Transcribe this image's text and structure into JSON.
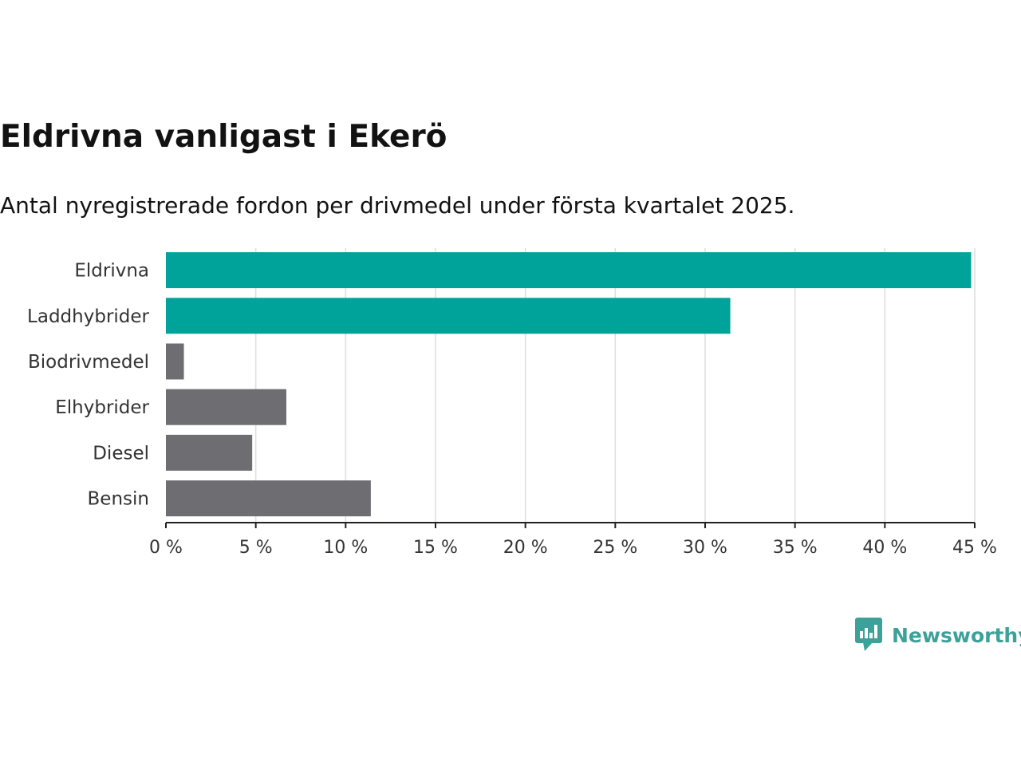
{
  "title": "Eldrivna vanligast i Ekerö",
  "subtitle": "Antal nyregistrerade fordon per drivmedel under första kvartalet 2025.",
  "brand": {
    "name": "Newsworthy",
    "icon": "newsworthy-bar-chart-logo-icon",
    "color": "#3ca199"
  },
  "colors": {
    "highlight": "#00a39a",
    "muted": "#6e6d72",
    "grid": "#dedede",
    "axis": "#222222"
  },
  "chart_data": {
    "type": "bar",
    "orientation": "horizontal",
    "categories": [
      "Eldrivna",
      "Laddhybrider",
      "Biodrivmedel",
      "Elhybrider",
      "Diesel",
      "Bensin"
    ],
    "values": [
      44.8,
      31.4,
      1.0,
      6.7,
      4.8,
      11.4
    ],
    "highlighted": [
      true,
      true,
      false,
      false,
      false,
      false
    ],
    "xlim": [
      0,
      45
    ],
    "xticks": [
      0,
      5,
      10,
      15,
      20,
      25,
      30,
      35,
      40,
      45
    ],
    "xtick_labels": [
      "0 %",
      "5 %",
      "10 %",
      "15 %",
      "20 %",
      "25 %",
      "30 %",
      "35 %",
      "40 %",
      "45 %"
    ],
    "grid": true,
    "legend": "none"
  }
}
